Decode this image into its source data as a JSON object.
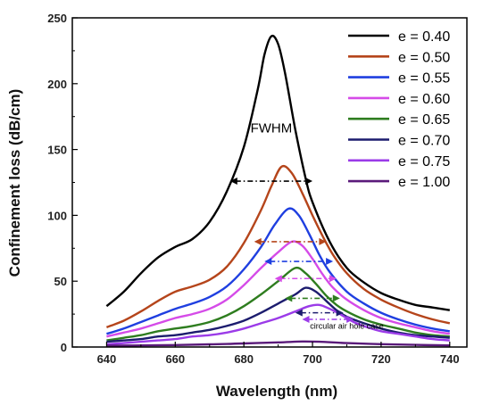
{
  "chart_data": {
    "type": "line",
    "xlabel": "Wavelength (nm)",
    "ylabel": "Confinement loss (dB/cm)",
    "xlim": [
      630,
      745
    ],
    "ylim": [
      0,
      250
    ],
    "xticks": [
      640,
      660,
      680,
      700,
      720,
      740
    ],
    "yticks": [
      0,
      50,
      100,
      150,
      200,
      250
    ],
    "legend_position": "top-right",
    "grid": false,
    "series": [
      {
        "name": "e = 0.40",
        "color": "#000000",
        "points": [
          [
            640,
            31
          ],
          [
            645,
            42
          ],
          [
            650,
            56
          ],
          [
            655,
            68
          ],
          [
            660,
            76
          ],
          [
            665,
            82
          ],
          [
            670,
            95
          ],
          [
            675,
            118
          ],
          [
            680,
            152
          ],
          [
            684,
            195
          ],
          [
            686,
            222
          ],
          [
            688,
            236
          ],
          [
            690,
            230
          ],
          [
            692,
            208
          ],
          [
            695,
            165
          ],
          [
            698,
            128
          ],
          [
            700,
            110
          ],
          [
            705,
            80
          ],
          [
            710,
            60
          ],
          [
            715,
            49
          ],
          [
            720,
            41
          ],
          [
            725,
            36
          ],
          [
            730,
            32
          ],
          [
            735,
            30
          ],
          [
            740,
            28
          ]
        ]
      },
      {
        "name": "e = 0.50",
        "color": "#b5451b",
        "points": [
          [
            640,
            15
          ],
          [
            645,
            20
          ],
          [
            650,
            27
          ],
          [
            655,
            35
          ],
          [
            660,
            42
          ],
          [
            665,
            46
          ],
          [
            670,
            51
          ],
          [
            675,
            61
          ],
          [
            680,
            79
          ],
          [
            685,
            104
          ],
          [
            688,
            122
          ],
          [
            691,
            137
          ],
          [
            694,
            132
          ],
          [
            697,
            117
          ],
          [
            700,
            100
          ],
          [
            703,
            84
          ],
          [
            706,
            70
          ],
          [
            710,
            56
          ],
          [
            715,
            44
          ],
          [
            720,
            36
          ],
          [
            725,
            30
          ],
          [
            730,
            25
          ],
          [
            735,
            21
          ],
          [
            740,
            18
          ]
        ]
      },
      {
        "name": "e = 0.55",
        "color": "#1f3fe0",
        "points": [
          [
            640,
            10
          ],
          [
            645,
            14
          ],
          [
            650,
            19
          ],
          [
            655,
            24
          ],
          [
            660,
            29
          ],
          [
            665,
            33
          ],
          [
            670,
            38
          ],
          [
            675,
            46
          ],
          [
            680,
            59
          ],
          [
            685,
            76
          ],
          [
            689,
            93
          ],
          [
            693,
            105
          ],
          [
            696,
            100
          ],
          [
            699,
            86
          ],
          [
            702,
            70
          ],
          [
            705,
            57
          ],
          [
            710,
            42
          ],
          [
            715,
            33
          ],
          [
            720,
            26
          ],
          [
            725,
            21
          ],
          [
            730,
            17
          ],
          [
            735,
            14
          ],
          [
            740,
            12
          ]
        ]
      },
      {
        "name": "e = 0.60",
        "color": "#d54be8",
        "points": [
          [
            640,
            8
          ],
          [
            645,
            11
          ],
          [
            650,
            14
          ],
          [
            655,
            18
          ],
          [
            660,
            22
          ],
          [
            665,
            25
          ],
          [
            670,
            29
          ],
          [
            675,
            36
          ],
          [
            680,
            47
          ],
          [
            685,
            60
          ],
          [
            690,
            72
          ],
          [
            694,
            80
          ],
          [
            697,
            77
          ],
          [
            700,
            67
          ],
          [
            703,
            55
          ],
          [
            706,
            45
          ],
          [
            710,
            36
          ],
          [
            715,
            28
          ],
          [
            720,
            22
          ],
          [
            725,
            18
          ],
          [
            730,
            15
          ],
          [
            735,
            12
          ],
          [
            740,
            10
          ]
        ]
      },
      {
        "name": "e = 0.65",
        "color": "#2e7d1f",
        "points": [
          [
            640,
            5
          ],
          [
            645,
            7
          ],
          [
            650,
            9
          ],
          [
            655,
            12
          ],
          [
            660,
            14
          ],
          [
            665,
            16
          ],
          [
            670,
            19
          ],
          [
            675,
            24
          ],
          [
            680,
            31
          ],
          [
            685,
            40
          ],
          [
            690,
            50
          ],
          [
            695,
            60
          ],
          [
            698,
            56
          ],
          [
            701,
            48
          ],
          [
            704,
            39
          ],
          [
            707,
            32
          ],
          [
            710,
            27
          ],
          [
            715,
            21
          ],
          [
            720,
            17
          ],
          [
            725,
            14
          ],
          [
            730,
            11
          ],
          [
            735,
            9
          ],
          [
            740,
            8
          ]
        ]
      },
      {
        "name": "e = 0.70",
        "color": "#1c1c6e",
        "points": [
          [
            640,
            4
          ],
          [
            645,
            5
          ],
          [
            650,
            6
          ],
          [
            655,
            8
          ],
          [
            660,
            9
          ],
          [
            665,
            11
          ],
          [
            670,
            13
          ],
          [
            675,
            16
          ],
          [
            680,
            20
          ],
          [
            685,
            26
          ],
          [
            690,
            33
          ],
          [
            695,
            40
          ],
          [
            698,
            45
          ],
          [
            701,
            42
          ],
          [
            704,
            35
          ],
          [
            707,
            28
          ],
          [
            710,
            23
          ],
          [
            715,
            18
          ],
          [
            720,
            14
          ],
          [
            725,
            11
          ],
          [
            730,
            9
          ],
          [
            735,
            8
          ],
          [
            740,
            7
          ]
        ]
      },
      {
        "name": "e = 0.75",
        "color": "#9b3be8",
        "points": [
          [
            640,
            2
          ],
          [
            645,
            3
          ],
          [
            650,
            4
          ],
          [
            655,
            5
          ],
          [
            660,
            6
          ],
          [
            665,
            8
          ],
          [
            670,
            9
          ],
          [
            675,
            11
          ],
          [
            680,
            14
          ],
          [
            685,
            18
          ],
          [
            690,
            22
          ],
          [
            695,
            27
          ],
          [
            699,
            31
          ],
          [
            702,
            32
          ],
          [
            705,
            29
          ],
          [
            708,
            25
          ],
          [
            712,
            19
          ],
          [
            716,
            15
          ],
          [
            720,
            12
          ],
          [
            725,
            10
          ],
          [
            730,
            8
          ],
          [
            735,
            6
          ],
          [
            740,
            5
          ]
        ]
      },
      {
        "name": "e = 1.00",
        "color": "#5a1a7a",
        "points": [
          [
            640,
            1
          ],
          [
            650,
            1.2
          ],
          [
            660,
            1.5
          ],
          [
            670,
            2
          ],
          [
            680,
            2.7
          ],
          [
            690,
            3.5
          ],
          [
            697,
            4.2
          ],
          [
            702,
            4
          ],
          [
            710,
            3
          ],
          [
            720,
            2.2
          ],
          [
            730,
            1.6
          ],
          [
            740,
            1.2
          ]
        ]
      }
    ],
    "annotations": [
      {
        "text": "FWHM",
        "x": 688,
        "y": 163
      },
      {
        "text": "circular air hole case",
        "x": 710,
        "y": 14
      }
    ],
    "fwhm_arrows": [
      {
        "y": 126,
        "x1": 676,
        "x2": 700,
        "color": "#000000"
      },
      {
        "y": 80,
        "x1": 683,
        "x2": 704,
        "color": "#b5451b"
      },
      {
        "y": 65,
        "x1": 686,
        "x2": 706,
        "color": "#1f3fe0"
      },
      {
        "y": 52,
        "x1": 689,
        "x2": 707,
        "color": "#d54be8"
      },
      {
        "y": 37,
        "x1": 692,
        "x2": 708,
        "color": "#2e7d1f"
      },
      {
        "y": 26,
        "x1": 695,
        "x2": 709,
        "color": "#1c1c6e"
      },
      {
        "y": 21,
        "x1": 697,
        "x2": 712,
        "color": "#9b3be8"
      }
    ]
  }
}
